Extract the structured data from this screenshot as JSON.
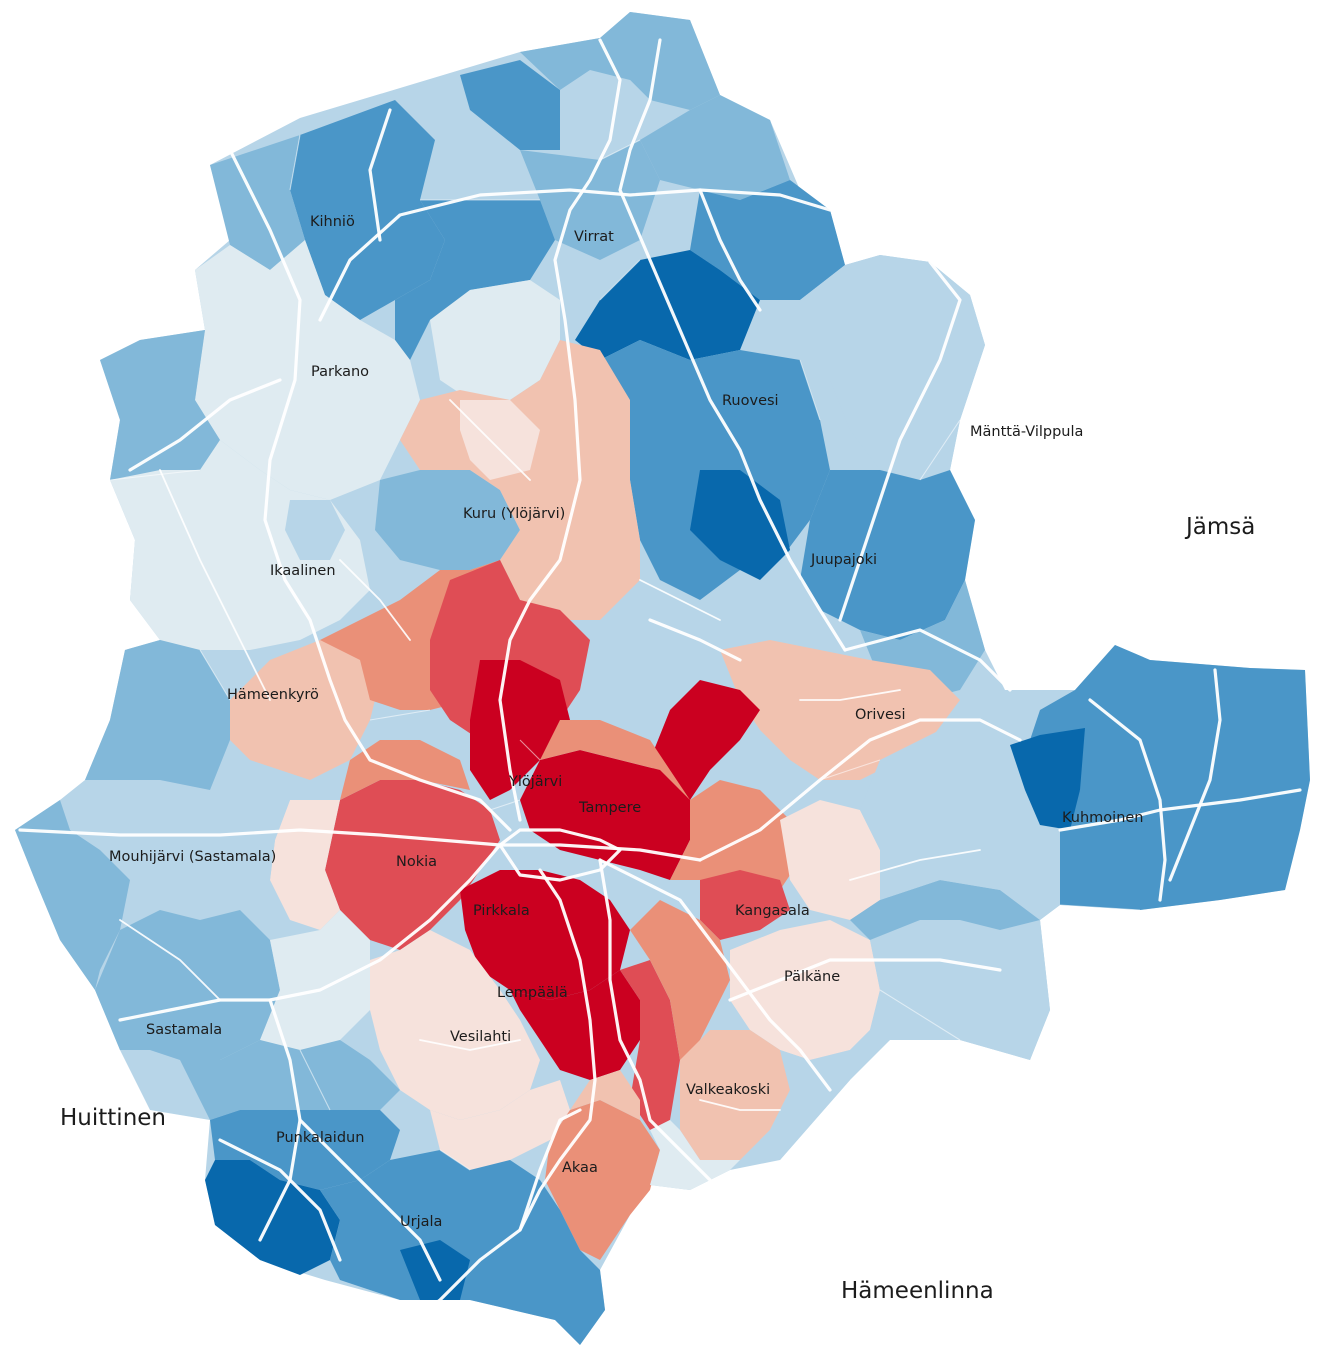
{
  "colors": {
    "blue_1": "#0868ac",
    "blue_2": "#4a96c8",
    "blue_3": "#82b8d9",
    "blue_4": "#b7d5e8",
    "blue_5": "#dfebf1",
    "red_5": "#f6e2dc",
    "red_4": "#f1c2b0",
    "red_3": "#ea9078",
    "red_2": "#df4d55",
    "red_1": "#cb0020",
    "road": "#ffffff",
    "label": "#1c1c1c"
  },
  "places": {
    "kihnio": "Kihniö",
    "virrat": "Virrat",
    "parkano": "Parkano",
    "ruovesi": "Ruovesi",
    "mantta": "Mänttä-Vilppula",
    "kuru": "Kuru (Ylöjärvi)",
    "ikaalinen": "Ikaalinen",
    "juupajoki": "Juupajoki",
    "hameenkyro": "Hämeenkyrö",
    "orivesi": "Orivesi",
    "ylojarvi": "Ylöjärvi",
    "tampere": "Tampere",
    "kuhmoinen": "Kuhmoinen",
    "mouhijarvi": "Mouhijärvi (Sastamala)",
    "nokia": "Nokia",
    "pirkkala": "Pirkkala",
    "kangasala": "Kangasala",
    "palkane": "Pälkäne",
    "lempaala": "Lempäälä",
    "sastamala": "Sastamala",
    "vesilahti": "Vesilahti",
    "valkeakoski": "Valkeakoski",
    "punkalaidun": "Punkalaidun",
    "akaa": "Akaa",
    "urjala": "Urjala"
  },
  "neighbors": {
    "jamsa": "Jämsä",
    "huittinen": "Huittinen",
    "hameenlinna": "Hämeenlinna"
  }
}
